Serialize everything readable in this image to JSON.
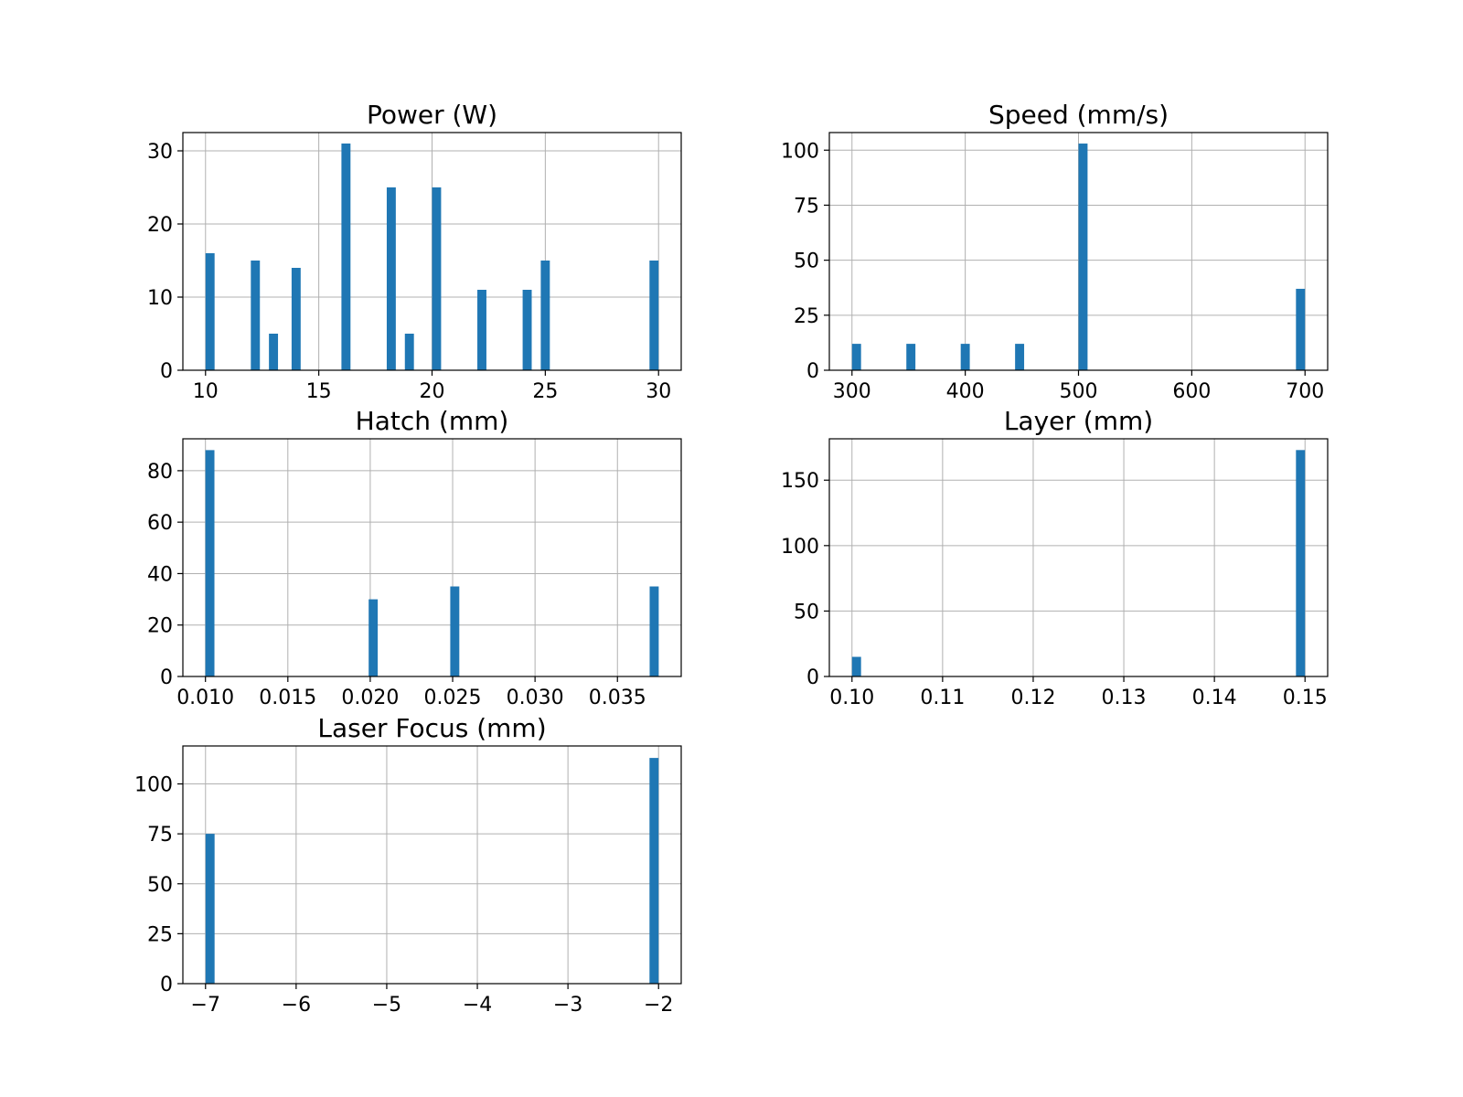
{
  "figure": {
    "background": "#ffffff"
  },
  "chart_data": [
    {
      "type": "bar",
      "title": "Power (W)",
      "xlabel": "",
      "ylabel": "",
      "color": "#1f77b4",
      "xlim": [
        9,
        31
      ],
      "ylim": [
        0,
        32.5
      ],
      "bin_width": 0.4,
      "x_ticks": [
        10,
        15,
        20,
        25,
        30
      ],
      "y_ticks": [
        0,
        10,
        20,
        30
      ],
      "grid": true,
      "bars": [
        {
          "x": 10.2,
          "value": 16
        },
        {
          "x": 12.2,
          "value": 15
        },
        {
          "x": 13.0,
          "value": 5
        },
        {
          "x": 14.0,
          "value": 14
        },
        {
          "x": 16.2,
          "value": 31
        },
        {
          "x": 18.2,
          "value": 25
        },
        {
          "x": 19.0,
          "value": 5
        },
        {
          "x": 20.2,
          "value": 25
        },
        {
          "x": 22.2,
          "value": 11
        },
        {
          "x": 24.2,
          "value": 11
        },
        {
          "x": 25.0,
          "value": 15
        },
        {
          "x": 29.8,
          "value": 15
        }
      ]
    },
    {
      "type": "bar",
      "title": "Speed (mm/s)",
      "xlabel": "",
      "ylabel": "",
      "color": "#1f77b4",
      "xlim": [
        280,
        720
      ],
      "ylim": [
        0,
        108
      ],
      "bin_width": 8,
      "x_ticks": [
        300,
        400,
        500,
        600,
        700
      ],
      "y_ticks": [
        0,
        25,
        50,
        75,
        100
      ],
      "grid": true,
      "bars": [
        {
          "x": 304,
          "value": 12
        },
        {
          "x": 352,
          "value": 12
        },
        {
          "x": 400,
          "value": 12
        },
        {
          "x": 448,
          "value": 12
        },
        {
          "x": 504,
          "value": 103
        },
        {
          "x": 696,
          "value": 37
        }
      ]
    },
    {
      "type": "bar",
      "title": "Hatch (mm)",
      "xlabel": "",
      "ylabel": "",
      "color": "#1f77b4",
      "xlim": [
        0.00863,
        0.03887
      ],
      "ylim": [
        0,
        92.4
      ],
      "bin_width": 0.00055,
      "x_ticks": [
        0.01,
        0.015,
        0.02,
        0.025,
        0.03,
        0.035
      ],
      "x_tick_labels": [
        "0.010",
        "0.015",
        "0.020",
        "0.025",
        "0.030",
        "0.035"
      ],
      "y_ticks": [
        0,
        20,
        40,
        60,
        80
      ],
      "grid": true,
      "bars": [
        {
          "x": 0.01027,
          "value": 88
        },
        {
          "x": 0.02018,
          "value": 30
        },
        {
          "x": 0.02513,
          "value": 35
        },
        {
          "x": 0.03723,
          "value": 35
        }
      ]
    },
    {
      "type": "bar",
      "title": "Layer (mm)",
      "xlabel": "",
      "ylabel": "",
      "color": "#1f77b4",
      "xlim": [
        0.0975,
        0.1525
      ],
      "ylim": [
        0,
        181.6
      ],
      "bin_width": 0.001,
      "x_ticks": [
        0.1,
        0.11,
        0.12,
        0.13,
        0.14,
        0.15
      ],
      "x_tick_labels": [
        "0.10",
        "0.11",
        "0.12",
        "0.13",
        "0.14",
        "0.15"
      ],
      "y_ticks": [
        0,
        50,
        100,
        150
      ],
      "grid": true,
      "bars": [
        {
          "x": 0.1005,
          "value": 15
        },
        {
          "x": 0.1495,
          "value": 173
        }
      ]
    },
    {
      "type": "bar",
      "title": "Laser Focus (mm)",
      "xlabel": "",
      "ylabel": "",
      "color": "#1f77b4",
      "xlim": [
        -7.25,
        -1.75
      ],
      "ylim": [
        0,
        119
      ],
      "bin_width": 0.1,
      "x_ticks": [
        -7,
        -6,
        -5,
        -4,
        -3,
        -2
      ],
      "x_tick_labels": [
        "−7",
        "−6",
        "−5",
        "−4",
        "−3",
        "−2"
      ],
      "y_ticks": [
        0,
        25,
        50,
        75,
        100
      ],
      "grid": true,
      "bars": [
        {
          "x": -6.95,
          "value": 75
        },
        {
          "x": -2.05,
          "value": 113
        }
      ]
    }
  ]
}
